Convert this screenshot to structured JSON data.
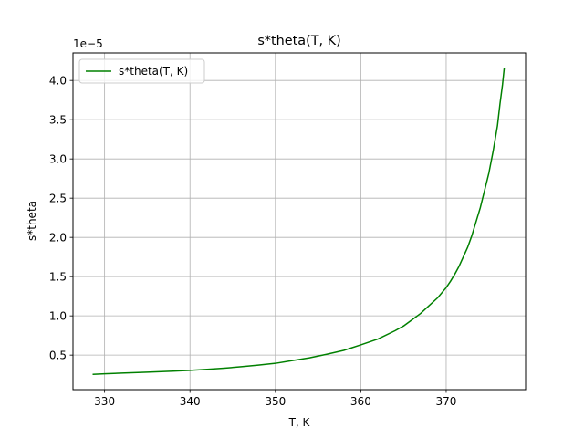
{
  "chart_data": {
    "type": "line",
    "title": "s*theta(T, K)",
    "xlabel": "T, K",
    "ylabel": "s*theta",
    "y_multiplier_label": "1e−5",
    "xlim": [
      326.3,
      379.3
    ],
    "ylim": [
      0.0599,
      4.3509
    ],
    "grid": true,
    "legend_position": "top-left",
    "xticks": [
      330,
      340,
      350,
      360,
      370
    ],
    "xtick_labels": [
      "330",
      "340",
      "350",
      "360",
      "370"
    ],
    "yticks": [
      0.5,
      1.0,
      1.5,
      2.0,
      2.5,
      3.0,
      3.5,
      4.0
    ],
    "ytick_labels": [
      "0.5",
      "1.0",
      "1.5",
      "2.0",
      "2.5",
      "3.0",
      "3.5",
      "4.0"
    ],
    "series": [
      {
        "name": "s*theta(T, K)",
        "color": "#008000",
        "x": [
          328.6,
          330,
          332,
          335,
          338,
          340,
          342,
          344,
          346,
          348,
          350,
          352,
          354,
          356,
          358,
          360,
          362,
          364,
          365,
          366,
          367,
          368,
          369,
          370,
          370.5,
          371,
          371.5,
          372,
          372.5,
          373,
          373.5,
          374,
          374.5,
          375,
          375.5,
          376,
          376.3,
          376.6,
          376.8
        ],
        "y": [
          0.255,
          0.262,
          0.27,
          0.282,
          0.295,
          0.305,
          0.318,
          0.333,
          0.352,
          0.372,
          0.395,
          0.43,
          0.465,
          0.51,
          0.56,
          0.63,
          0.705,
          0.81,
          0.87,
          0.95,
          1.03,
          1.13,
          1.23,
          1.36,
          1.44,
          1.53,
          1.63,
          1.75,
          1.87,
          2.02,
          2.2,
          2.38,
          2.6,
          2.82,
          3.1,
          3.42,
          3.7,
          3.95,
          4.16
        ]
      }
    ]
  }
}
